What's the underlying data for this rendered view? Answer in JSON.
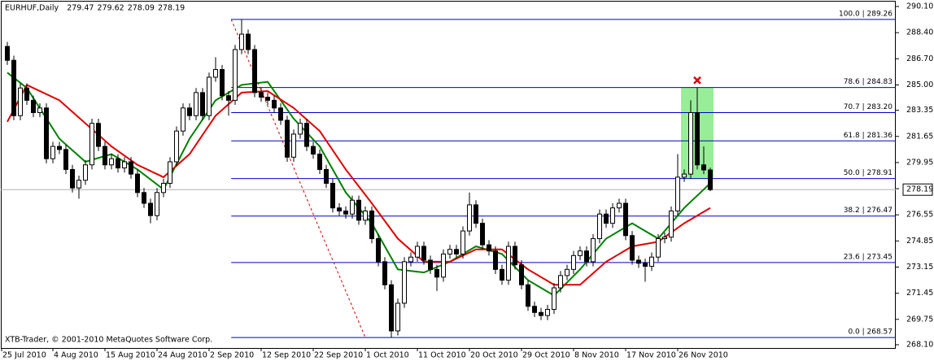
{
  "chart_data": {
    "type": "candlestick",
    "title": "EURHUF,Daily",
    "footer": "XTB-Trader, © 2001-2010 MetaQuotes Software Corp.",
    "up_color": "#ffffff",
    "down_color": "#000000",
    "candles": [
      [
        287.5,
        287.8,
        286.3,
        286.6
      ],
      [
        286.6,
        286.9,
        282.7,
        283.0
      ],
      [
        283.0,
        285.1,
        282.7,
        284.8
      ],
      [
        284.8,
        285.1,
        283.7,
        284.0
      ],
      [
        284.0,
        284.3,
        282.9,
        283.2
      ],
      [
        283.2,
        283.8,
        282.9,
        283.5
      ],
      [
        283.5,
        283.8,
        279.9,
        280.2
      ],
      [
        280.2,
        281.3,
        279.9,
        281.0
      ],
      [
        281.0,
        281.3,
        280.5,
        280.8
      ],
      [
        280.8,
        281.1,
        279.2,
        279.5
      ],
      [
        279.5,
        279.8,
        278.0,
        278.3
      ],
      [
        278.3,
        279.1,
        277.6,
        278.8
      ],
      [
        278.8,
        280.1,
        278.5,
        279.8
      ],
      [
        279.8,
        282.8,
        279.5,
        282.5
      ],
      [
        282.5,
        282.8,
        280.7,
        281.0
      ],
      [
        281.0,
        281.3,
        279.5,
        279.8
      ],
      [
        279.8,
        280.5,
        279.5,
        280.2
      ],
      [
        280.2,
        280.5,
        279.3,
        279.6
      ],
      [
        279.6,
        280.3,
        279.3,
        280.0
      ],
      [
        280.0,
        280.3,
        278.9,
        279.2
      ],
      [
        279.2,
        279.5,
        277.7,
        278.0
      ],
      [
        278.0,
        278.3,
        277.0,
        277.3
      ],
      [
        277.3,
        277.6,
        276.0,
        276.5
      ],
      [
        276.5,
        278.3,
        276.2,
        278.0
      ],
      [
        278.0,
        278.9,
        277.7,
        278.6
      ],
      [
        278.6,
        280.3,
        278.3,
        280.0
      ],
      [
        280.0,
        282.3,
        279.7,
        282.0
      ],
      [
        282.0,
        283.8,
        281.7,
        283.5
      ],
      [
        283.5,
        283.8,
        282.7,
        283.0
      ],
      [
        283.0,
        284.8,
        282.7,
        284.5
      ],
      [
        284.5,
        284.8,
        282.7,
        283.0
      ],
      [
        283.0,
        285.8,
        282.7,
        285.5
      ],
      [
        285.5,
        286.8,
        285.2,
        286.0
      ],
      [
        286.0,
        286.3,
        284.0,
        284.3
      ],
      [
        284.3,
        284.6,
        283.0,
        284.0
      ],
      [
        284.0,
        287.6,
        283.7,
        287.3
      ],
      [
        287.3,
        289.26,
        287.0,
        288.3
      ],
      [
        288.3,
        288.6,
        287.0,
        287.3
      ],
      [
        287.3,
        287.6,
        284.2,
        284.5
      ],
      [
        284.5,
        284.8,
        283.9,
        284.2
      ],
      [
        284.2,
        284.5,
        283.7,
        284.0
      ],
      [
        284.0,
        284.3,
        283.2,
        283.5
      ],
      [
        283.5,
        283.8,
        282.4,
        282.7
      ],
      [
        282.7,
        283.0,
        280.0,
        280.3
      ],
      [
        280.3,
        282.1,
        280.0,
        281.8
      ],
      [
        281.8,
        282.8,
        281.5,
        282.5
      ],
      [
        282.5,
        282.8,
        280.7,
        281.0
      ],
      [
        281.0,
        281.3,
        280.2,
        280.5
      ],
      [
        280.5,
        280.8,
        279.2,
        279.5
      ],
      [
        279.5,
        279.8,
        278.3,
        278.6
      ],
      [
        278.6,
        278.9,
        276.7,
        277.0
      ],
      [
        277.0,
        277.3,
        276.5,
        276.8
      ],
      [
        276.8,
        277.1,
        276.3,
        276.6
      ],
      [
        276.6,
        277.8,
        276.3,
        277.5
      ],
      [
        277.5,
        277.8,
        275.9,
        276.2
      ],
      [
        276.2,
        277.1,
        275.9,
        276.8
      ],
      [
        276.8,
        277.1,
        274.7,
        275.0
      ],
      [
        275.0,
        275.3,
        273.2,
        273.5
      ],
      [
        273.5,
        273.8,
        271.7,
        272.0
      ],
      [
        272.0,
        272.3,
        268.57,
        269.0
      ],
      [
        269.0,
        271.1,
        268.7,
        270.8
      ],
      [
        270.8,
        273.8,
        270.5,
        273.5
      ],
      [
        273.5,
        274.1,
        273.2,
        273.8
      ],
      [
        273.8,
        274.8,
        273.5,
        274.5
      ],
      [
        274.5,
        274.8,
        273.3,
        273.6
      ],
      [
        273.6,
        273.9,
        272.7,
        273.0
      ],
      [
        273.0,
        273.3,
        271.6,
        272.5
      ],
      [
        272.5,
        274.3,
        272.2,
        274.0
      ],
      [
        274.0,
        274.6,
        273.7,
        274.3
      ],
      [
        274.3,
        274.6,
        273.7,
        274.0
      ],
      [
        274.0,
        275.8,
        273.7,
        275.5
      ],
      [
        275.5,
        278.0,
        275.2,
        277.2
      ],
      [
        277.2,
        277.5,
        275.7,
        276.0
      ],
      [
        276.0,
        276.3,
        274.3,
        274.6
      ],
      [
        274.6,
        274.9,
        273.9,
        274.2
      ],
      [
        274.2,
        274.5,
        272.7,
        273.0
      ],
      [
        273.0,
        273.3,
        272.0,
        272.3
      ],
      [
        272.3,
        274.8,
        272.0,
        274.5
      ],
      [
        274.5,
        274.8,
        273.0,
        273.3
      ],
      [
        273.3,
        273.6,
        271.7,
        272.0
      ],
      [
        272.0,
        272.3,
        270.3,
        270.6
      ],
      [
        270.6,
        270.9,
        269.9,
        270.2
      ],
      [
        270.2,
        270.5,
        269.7,
        270.0
      ],
      [
        270.0,
        270.7,
        269.7,
        270.4
      ],
      [
        270.4,
        272.1,
        270.1,
        271.8
      ],
      [
        271.8,
        272.9,
        271.5,
        272.6
      ],
      [
        272.6,
        273.3,
        272.3,
        273.0
      ],
      [
        273.0,
        274.2,
        272.7,
        273.9
      ],
      [
        273.9,
        274.5,
        273.6,
        274.2
      ],
      [
        274.2,
        274.5,
        273.2,
        273.5
      ],
      [
        273.5,
        275.3,
        273.2,
        275.0
      ],
      [
        275.0,
        276.9,
        274.7,
        276.6
      ],
      [
        276.6,
        276.9,
        275.7,
        276.0
      ],
      [
        276.0,
        277.3,
        275.7,
        277.0
      ],
      [
        277.0,
        277.6,
        276.7,
        277.3
      ],
      [
        277.3,
        277.6,
        274.9,
        275.2
      ],
      [
        275.2,
        275.5,
        273.3,
        273.6
      ],
      [
        273.6,
        273.9,
        273.1,
        273.4
      ],
      [
        273.4,
        273.7,
        272.2,
        273.2
      ],
      [
        273.2,
        274.1,
        272.9,
        273.8
      ],
      [
        273.8,
        275.3,
        273.5,
        275.0
      ],
      [
        275.0,
        275.4,
        274.7,
        275.1
      ],
      [
        275.1,
        277.1,
        274.8,
        276.8
      ],
      [
        276.8,
        280.5,
        276.5,
        279.0
      ],
      [
        279.0,
        279.5,
        278.7,
        279.2
      ],
      [
        279.2,
        284.0,
        278.9,
        283.2
      ],
      [
        283.2,
        284.83,
        279.5,
        279.8
      ],
      [
        279.8,
        281.0,
        279.2,
        279.47
      ],
      [
        279.47,
        279.62,
        278.09,
        278.19
      ]
    ],
    "series": [
      {
        "color": "#008000",
        "x": [
          0,
          3,
          8,
          12,
          16,
          20,
          24,
          28,
          32,
          36,
          40,
          44,
          48,
          52,
          56,
          60,
          64,
          68,
          72,
          76,
          80,
          84,
          88,
          92,
          96,
          100,
          104,
          108
        ],
        "values": [
          285.8,
          284.8,
          281.5,
          280.0,
          280.5,
          279.5,
          278.2,
          281.5,
          284.0,
          285.0,
          285.2,
          282.8,
          281.0,
          278.0,
          276.0,
          273.0,
          272.8,
          273.5,
          274.5,
          274.0,
          272.3,
          271.3,
          273.0,
          275.0,
          276.0,
          275.0,
          277.0,
          278.6
        ]
      },
      {
        "color": "#e00000",
        "x": [
          0,
          3,
          8,
          12,
          16,
          20,
          24,
          28,
          32,
          36,
          40,
          44,
          48,
          52,
          56,
          60,
          64,
          68,
          72,
          76,
          80,
          84,
          88,
          92,
          96,
          100,
          104,
          108
        ],
        "values": [
          282.6,
          285.0,
          284.0,
          282.5,
          281.0,
          279.8,
          279.0,
          280.5,
          283.0,
          284.5,
          284.6,
          283.5,
          282.0,
          279.5,
          277.3,
          275.0,
          273.5,
          273.5,
          274.3,
          274.3,
          273.0,
          272.0,
          272.0,
          273.5,
          274.5,
          274.8,
          276.0,
          277.0
        ]
      }
    ],
    "fib_start": 34.4,
    "fib_color": "#0000c8",
    "fib_levels": [
      {
        "value": 289.26,
        "label": "100.0 | 289.26"
      },
      {
        "value": 284.83,
        "label": "78.6 | 284.83"
      },
      {
        "value": 283.2,
        "label": "70.7 | 283.20"
      },
      {
        "value": 281.36,
        "label": "61.8 | 281.36"
      },
      {
        "value": 278.91,
        "label": "50.0 | 278.91"
      },
      {
        "value": 276.47,
        "label": "38.2 | 276.47"
      },
      {
        "value": 273.45,
        "label": "23.6 | 273.45"
      },
      {
        "value": 268.57,
        "label": "0.0 | 268.57"
      }
    ],
    "trend_line": {
      "x": [
        34.4,
        55.0
      ],
      "values": [
        289.26,
        268.57
      ],
      "color": "#d00000"
    },
    "highlight": {
      "x": [
        103.5,
        108.5
      ],
      "values": [
        284.83,
        278.91
      ],
      "color": "#98ee98"
    },
    "marker": {
      "x": 106,
      "value": 285.3,
      "color": "#e00000"
    },
    "xlim": [
      -0.5,
      136.5
    ],
    "xticks": [
      {
        "value": -1,
        "label": "25 Jul 2010"
      },
      {
        "value": 7,
        "label": "4 Aug 2010"
      },
      {
        "value": 15,
        "label": "15 Aug 2010"
      },
      {
        "value": 23,
        "label": "24 Aug 2010"
      },
      {
        "value": 31,
        "label": "2 Sep 2010"
      },
      {
        "value": 39,
        "label": "12 Sep 2010"
      },
      {
        "value": 47,
        "label": "22 Sep 2010"
      },
      {
        "value": 55,
        "label": "1 Oct 2010"
      },
      {
        "value": 63,
        "label": "11 Oct 2010"
      },
      {
        "value": 71,
        "label": "20 Oct 2010"
      },
      {
        "value": 79,
        "label": "29 Oct 2010"
      },
      {
        "value": 87,
        "label": "8 Nov 2010"
      },
      {
        "value": 95,
        "label": "17 Nov 2010"
      },
      {
        "value": 103,
        "label": "26 Nov 2010"
      }
    ],
    "ylim": [
      268.1,
      290.1
    ],
    "yticks": [
      {
        "value": 290.1,
        "label": "290.10"
      },
      {
        "value": 288.4,
        "label": "288.40"
      },
      {
        "value": 286.7,
        "label": "286.70"
      },
      {
        "value": 285.0,
        "label": "285.00"
      },
      283.35,
      281.65,
      279.95,
      278.25,
      276.55,
      274.85,
      273.15,
      271.45,
      269.75,
      {
        "value": 268.1,
        "label": "268.10"
      }
    ]
  }
}
